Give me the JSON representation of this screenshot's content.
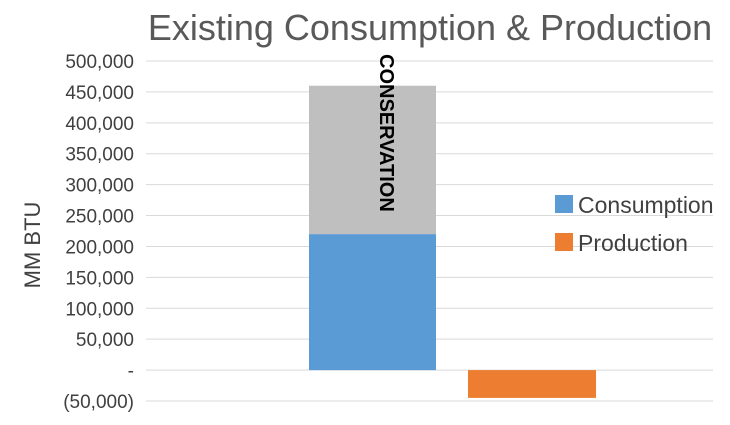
{
  "chart_data": {
    "type": "bar",
    "stacked": true,
    "title": "Existing Consumption & Production",
    "xlabel": "",
    "ylabel": "MM BTU",
    "ylim": [
      -50000,
      500000
    ],
    "yticks": [
      {
        "value": -50000,
        "label": "(50,000)"
      },
      {
        "value": 0,
        "label": "-"
      },
      {
        "value": 50000,
        "label": "50,000"
      },
      {
        "value": 100000,
        "label": "100,000"
      },
      {
        "value": 150000,
        "label": "150,000"
      },
      {
        "value": 200000,
        "label": "200,000"
      },
      {
        "value": 250000,
        "label": "250,000"
      },
      {
        "value": 300000,
        "label": "300,000"
      },
      {
        "value": 350000,
        "label": "350,000"
      },
      {
        "value": 400000,
        "label": "400,000"
      },
      {
        "value": 450000,
        "label": "450,000"
      },
      {
        "value": 500000,
        "label": "500,000"
      }
    ],
    "grid": true,
    "legend_position": "right",
    "bars": [
      {
        "series": "Consumption",
        "base": 0,
        "value": 220000,
        "color": "#5b9bd5",
        "slot": 0
      },
      {
        "series": "",
        "base": 220000,
        "value": 240000,
        "color": "#bfbfbf",
        "slot": 0
      },
      {
        "series": "Production",
        "base": 0,
        "value": -45000,
        "color": "#ed7d31",
        "slot": 1
      }
    ],
    "legend": [
      {
        "name": "Consumption",
        "color": "#5b9bd5"
      },
      {
        "name": "Production",
        "color": "#ed7d31"
      }
    ],
    "annotation": "CONSERVATION"
  }
}
